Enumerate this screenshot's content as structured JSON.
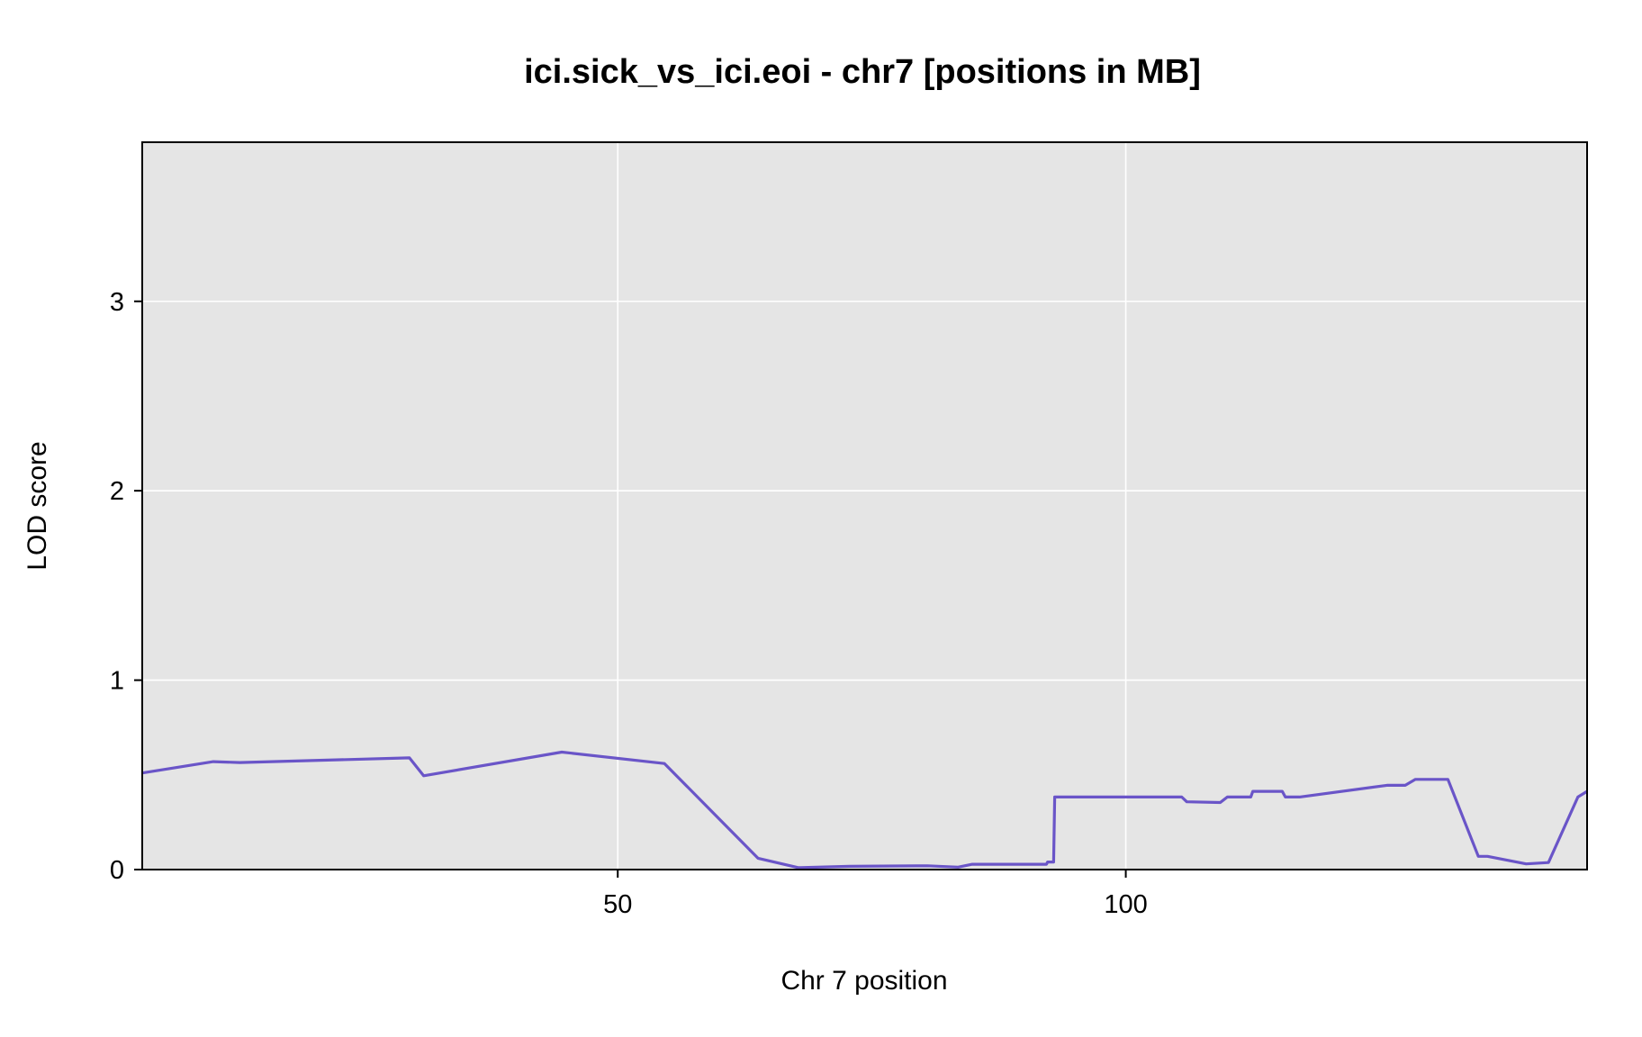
{
  "chart_data": {
    "type": "line",
    "title": "ici.sick_vs_ici.eoi - chr7 [positions in MB]",
    "xlabel": "Chr 7 position",
    "ylabel": "LOD score",
    "xlim": [
      3.2,
      145.4
    ],
    "ylim": [
      0,
      3.84
    ],
    "xticks": [
      50,
      100
    ],
    "yticks": [
      0,
      1,
      2,
      3
    ],
    "grid": true,
    "legend": "none",
    "colors": {
      "panel_bg": "#e5e5e5",
      "grid": "#ffffff",
      "line": "#6a55c8",
      "baseline": "#1a1aa6"
    },
    "series": [
      {
        "x": [
          3.2,
          10.2,
          12.8,
          29.5,
          30.9,
          44.5,
          54.6,
          63.8,
          67.8,
          72.8,
          80.5,
          83.5,
          84.9,
          92.2,
          92.3,
          92.9,
          93.0,
          105.5,
          106.0,
          109.3,
          110.0,
          112.3,
          112.5,
          115.4,
          115.7,
          117.1,
          125.7,
          127.5,
          128.5,
          131.7,
          134.7,
          135.6,
          139.4,
          141.6,
          144.5,
          145.4
        ],
        "y": [
          0.51,
          0.57,
          0.565,
          0.59,
          0.495,
          0.62,
          0.56,
          0.06,
          0.01,
          0.017,
          0.02,
          0.013,
          0.028,
          0.028,
          0.04,
          0.04,
          0.383,
          0.383,
          0.358,
          0.354,
          0.383,
          0.383,
          0.413,
          0.413,
          0.383,
          0.383,
          0.445,
          0.445,
          0.476,
          0.476,
          0.07,
          0.07,
          0.03,
          0.037,
          0.383,
          0.413
        ]
      }
    ]
  }
}
